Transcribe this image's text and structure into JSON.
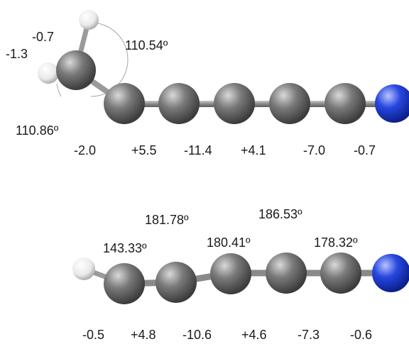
{
  "colors": {
    "carbon": "#6b6b6b",
    "nitrogen": "#1f3fd6",
    "hydrogen": "#f2f2f2",
    "bond": "#8c8c8c",
    "arc": "#a6a6a6",
    "text": "#1a1a1a"
  },
  "top_molecule": {
    "atoms": [
      "H",
      "H",
      "H",
      "C",
      "C",
      "C",
      "C",
      "C",
      "C",
      "N"
    ],
    "angle_labels": [
      "110.54º",
      "110.86º"
    ],
    "hydrogen_values": [
      "-0.7",
      "-1.3"
    ],
    "atom_values": [
      "-2.0",
      "+5.5",
      "-11.4",
      "+4.1",
      "-7.0",
      "-0.7"
    ]
  },
  "bottom_molecule": {
    "atoms": [
      "H",
      "C",
      "C",
      "C",
      "C",
      "C",
      "N"
    ],
    "angle_labels": [
      "143.33º",
      "181.78º",
      "180.41º",
      "186.53º",
      "178.32º"
    ],
    "atom_values": [
      "-0.5",
      "+4.8",
      "-10.6",
      "+4.6",
      "-7.3",
      "-0.6"
    ]
  }
}
